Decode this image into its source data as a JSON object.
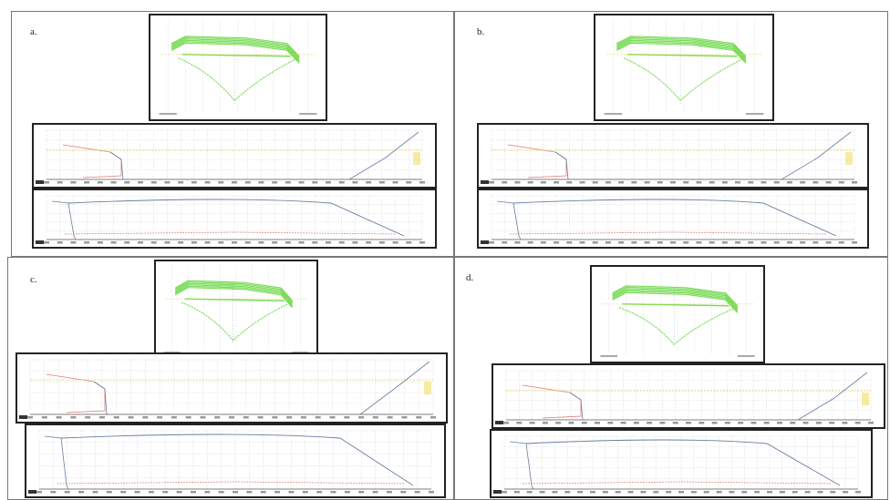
{
  "panels": [
    {
      "label": "a."
    },
    {
      "label": "b."
    },
    {
      "label": "c."
    },
    {
      "label": "d."
    }
  ],
  "colors": {
    "hull": "#7cdc5a",
    "grid": "#c8c8c8",
    "curve": "#6a7fa0",
    "red": "#e07a7a",
    "yellow": "#e8d24a",
    "frame": "#222222"
  },
  "icons": [
    "body-plan-icon",
    "curve-chart-icon"
  ]
}
